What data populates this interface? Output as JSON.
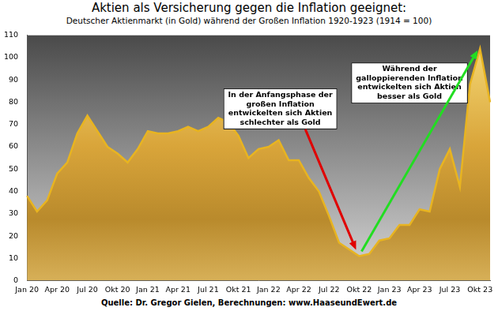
{
  "chart_data": {
    "type": "area",
    "title": "Aktien als Versicherung gegen die Inflation geeignet:",
    "subtitle": "Deutscher Aktienmarkt (in Gold) während der Großen Inflation 1920-1923 (1914 = 100)",
    "source": "Quelle: Dr. Gregor Gielen, Berechnungen: www.HaaseundEwert.de",
    "categories": [
      "Jan 20",
      null,
      null,
      "Apr 20",
      null,
      null,
      "Jul 20",
      null,
      null,
      "Okt 20",
      null,
      null,
      "Jan 21",
      null,
      null,
      "Apr 21",
      null,
      null,
      "Jul 21",
      null,
      null,
      "Okt 21",
      null,
      null,
      "Jan 22",
      null,
      null,
      "Apr 22",
      null,
      null,
      "Jul 22",
      null,
      null,
      "Okt 22",
      null,
      null,
      "Jan 23",
      null,
      null,
      "Apr 23",
      null,
      null,
      "Jul 23",
      null,
      null,
      "Okt 23",
      null
    ],
    "values": [
      38,
      31,
      36,
      48,
      53,
      66,
      74,
      67,
      60,
      57,
      53,
      59,
      67,
      66,
      66,
      67,
      69,
      67,
      69,
      73,
      71,
      65,
      55,
      59,
      60,
      63,
      54,
      54,
      46,
      40,
      29,
      17,
      14,
      11,
      12,
      18,
      19,
      25,
      25,
      32,
      31,
      50,
      59,
      42,
      88,
      104,
      80
    ],
    "color": "#e8b420",
    "ylim": [
      0,
      110
    ],
    "yticks": [
      0,
      10,
      20,
      30,
      40,
      50,
      60,
      70,
      80,
      90,
      100,
      110
    ],
    "grid": false,
    "annotations": [
      {
        "text": [
          "In der Anfangsphase der",
          "großen Inflation",
          "entwickelten sich Aktien",
          "schlechter als Gold"
        ],
        "color": "#e00000"
      },
      {
        "text": [
          "Während der",
          "galloppierenden Inflation",
          "entwickelten sich Aktien",
          "besser als Gold"
        ],
        "color": "#22dd22"
      }
    ]
  }
}
